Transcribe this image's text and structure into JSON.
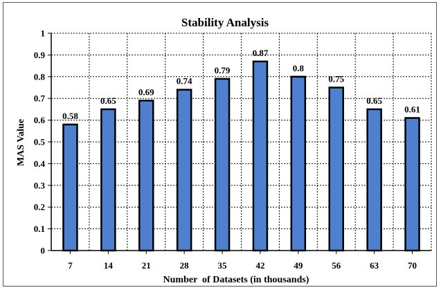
{
  "chart_data": {
    "type": "bar",
    "title": "Stability Analysis",
    "xlabel": "Number  of Datasets (in thousands)",
    "ylabel": "MAS Value",
    "categories": [
      "7",
      "14",
      "21",
      "28",
      "35",
      "42",
      "49",
      "56",
      "63",
      "70"
    ],
    "values": [
      0.58,
      0.65,
      0.69,
      0.74,
      0.79,
      0.87,
      0.8,
      0.75,
      0.65,
      0.61
    ],
    "data_labels": [
      "0.58",
      "0.65",
      "0.69",
      "0.74",
      "0.79",
      "0.87",
      "0.8",
      "0.75",
      "0.65",
      "0.61"
    ],
    "ylim": [
      0,
      1
    ],
    "yticks": [
      "0",
      "0.1",
      "0.2",
      "0.3",
      "0.4",
      "0.5",
      "0.6",
      "0.7",
      "0.8",
      "0.9",
      "1"
    ],
    "grid": true,
    "legend": "none",
    "colors": {
      "bar_fill": "#4f7fcf",
      "bar_edge": "#000000"
    }
  }
}
